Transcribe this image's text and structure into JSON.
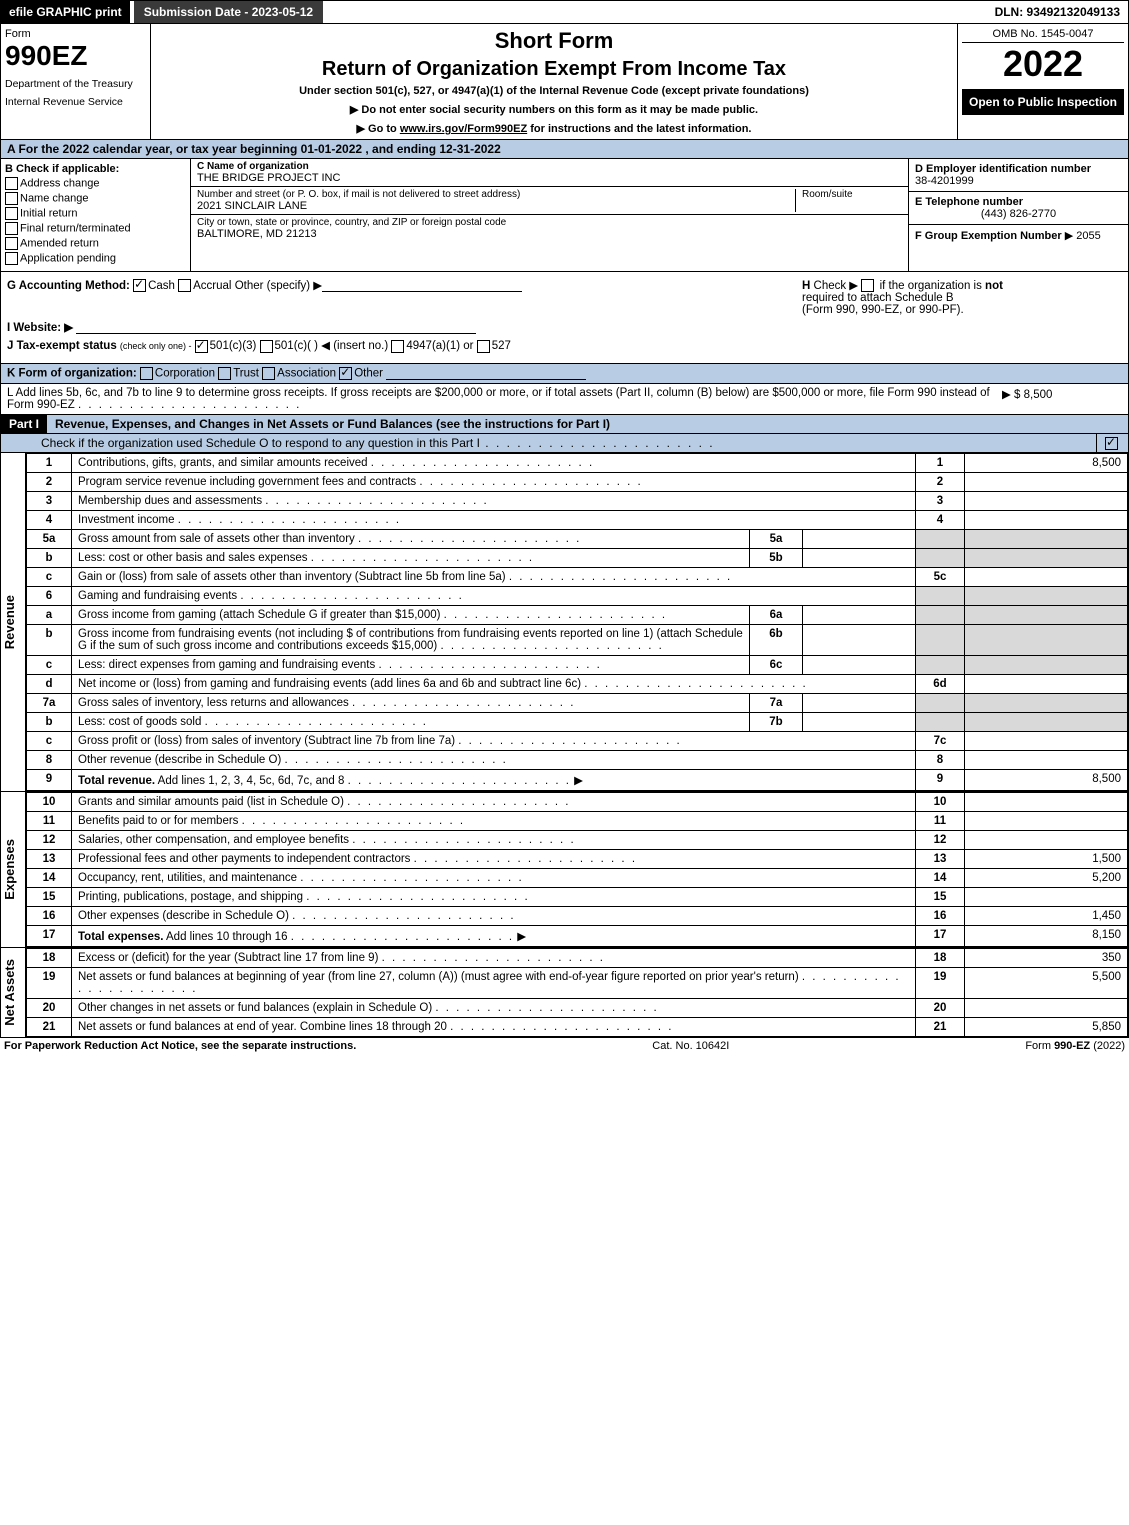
{
  "topbar": {
    "efile": "efile GRAPHIC print",
    "submission": "Submission Date - 2023-05-12",
    "dln": "DLN: 93492132049133"
  },
  "header": {
    "form_label": "Form",
    "form_number": "990EZ",
    "dept1": "Department of the Treasury",
    "dept2": "Internal Revenue Service",
    "short_form": "Short Form",
    "return_title": "Return of Organization Exempt From Income Tax",
    "under_section": "Under section 501(c), 527, or 4947(a)(1) of the Internal Revenue Code (except private foundations)",
    "notice1_prefix": "▶ Do not enter social security numbers on this form as it may be made public.",
    "notice2_prefix": "▶ Go to ",
    "notice2_link": "www.irs.gov/Form990EZ",
    "notice2_suffix": " for instructions and the latest information.",
    "omb": "OMB No. 1545-0047",
    "year": "2022",
    "open_to": "Open to Public Inspection"
  },
  "section_a": "A  For the 2022 calendar year, or tax year beginning 01-01-2022 , and ending 12-31-2022",
  "box_b": {
    "title": "B  Check if applicable:",
    "items": [
      "Address change",
      "Name change",
      "Initial return",
      "Final return/terminated",
      "Amended return",
      "Application pending"
    ]
  },
  "box_c": {
    "label": "C Name of organization",
    "name": "THE BRIDGE PROJECT INC",
    "street_label": "Number and street (or P. O. box, if mail is not delivered to street address)",
    "room_label": "Room/suite",
    "street": "2021 SINCLAIR LANE",
    "city_label": "City or town, state or province, country, and ZIP or foreign postal code",
    "city": "BALTIMORE, MD  21213"
  },
  "box_d": {
    "label": "D Employer identification number",
    "value": "38-4201999"
  },
  "box_e": {
    "label": "E Telephone number",
    "value": "(443) 826-2770"
  },
  "box_f": {
    "label": "F Group Exemption Number",
    "value": "▶ 2055"
  },
  "box_g": {
    "label": "G Accounting Method:",
    "cash": "Cash",
    "accrual": "Accrual",
    "other": "Other (specify) ▶"
  },
  "box_h": {
    "label": "H",
    "text1": "Check ▶",
    "text2": "if the organization is ",
    "not": "not",
    "text3": "required to attach Schedule B",
    "text4": "(Form 990, 990-EZ, or 990-PF)."
  },
  "box_i": {
    "label": "I Website: ▶"
  },
  "box_j": {
    "label": "J Tax-exempt status",
    "sub": "(check only one) -",
    "o1": "501(c)(3)",
    "o2": "501(c)(  ) ◀ (insert no.)",
    "o3": "4947(a)(1) or",
    "o4": "527"
  },
  "box_k": {
    "label": "K Form of organization:",
    "o1": "Corporation",
    "o2": "Trust",
    "o3": "Association",
    "o4": "Other"
  },
  "box_l": {
    "text": "L Add lines 5b, 6c, and 7b to line 9 to determine gross receipts. If gross receipts are $200,000 or more, or if total assets (Part II, column (B) below) are $500,000 or more, file Form 990 instead of Form 990-EZ",
    "amount": "▶ $ 8,500"
  },
  "part1": {
    "label": "Part I",
    "title": "Revenue, Expenses, and Changes in Net Assets or Fund Balances (see the instructions for Part I)",
    "check_line": "Check if the organization used Schedule O to respond to any question in this Part I"
  },
  "sections": {
    "revenue_label": "Revenue",
    "expenses_label": "Expenses",
    "netassets_label": "Net Assets"
  },
  "revenue_lines": [
    {
      "n": "1",
      "desc": "Contributions, gifts, grants, and similar amounts received",
      "rn": "1",
      "amt": "8,500"
    },
    {
      "n": "2",
      "desc": "Program service revenue including government fees and contracts",
      "rn": "2",
      "amt": ""
    },
    {
      "n": "3",
      "desc": "Membership dues and assessments",
      "rn": "3",
      "amt": ""
    },
    {
      "n": "4",
      "desc": "Investment income",
      "rn": "4",
      "amt": ""
    },
    {
      "n": "5a",
      "desc": "Gross amount from sale of assets other than inventory",
      "inner": "5a",
      "shade": true
    },
    {
      "n": "b",
      "desc": "Less: cost or other basis and sales expenses",
      "inner": "5b",
      "shade": true
    },
    {
      "n": "c",
      "desc": "Gain or (loss) from sale of assets other than inventory (Subtract line 5b from line 5a)",
      "rn": "5c",
      "amt": ""
    },
    {
      "n": "6",
      "desc": "Gaming and fundraising events",
      "shade_full": true
    },
    {
      "n": "a",
      "desc": "Gross income from gaming (attach Schedule G if greater than $15,000)",
      "inner": "6a",
      "shade": true
    },
    {
      "n": "b",
      "desc": "Gross income from fundraising events (not including $                         of contributions from fundraising events reported on line 1) (attach Schedule G if the sum of such gross income and contributions exceeds $15,000)",
      "inner": "6b",
      "shade": true
    },
    {
      "n": "c",
      "desc": "Less: direct expenses from gaming and fundraising events",
      "inner": "6c",
      "shade": true
    },
    {
      "n": "d",
      "desc": "Net income or (loss) from gaming and fundraising events (add lines 6a and 6b and subtract line 6c)",
      "rn": "6d",
      "amt": ""
    },
    {
      "n": "7a",
      "desc": "Gross sales of inventory, less returns and allowances",
      "inner": "7a",
      "shade": true
    },
    {
      "n": "b",
      "desc": "Less: cost of goods sold",
      "inner": "7b",
      "shade": true
    },
    {
      "n": "c",
      "desc": "Gross profit or (loss) from sales of inventory (Subtract line 7b from line 7a)",
      "rn": "7c",
      "amt": ""
    },
    {
      "n": "8",
      "desc": "Other revenue (describe in Schedule O)",
      "rn": "8",
      "amt": ""
    },
    {
      "n": "9",
      "desc": "Total revenue. Add lines 1, 2, 3, 4, 5c, 6d, 7c, and 8",
      "rn": "9",
      "amt": "8,500",
      "bold": true,
      "arrow": true
    }
  ],
  "expense_lines": [
    {
      "n": "10",
      "desc": "Grants and similar amounts paid (list in Schedule O)",
      "rn": "10",
      "amt": ""
    },
    {
      "n": "11",
      "desc": "Benefits paid to or for members",
      "rn": "11",
      "amt": ""
    },
    {
      "n": "12",
      "desc": "Salaries, other compensation, and employee benefits",
      "rn": "12",
      "amt": ""
    },
    {
      "n": "13",
      "desc": "Professional fees and other payments to independent contractors",
      "rn": "13",
      "amt": "1,500"
    },
    {
      "n": "14",
      "desc": "Occupancy, rent, utilities, and maintenance",
      "rn": "14",
      "amt": "5,200"
    },
    {
      "n": "15",
      "desc": "Printing, publications, postage, and shipping",
      "rn": "15",
      "amt": ""
    },
    {
      "n": "16",
      "desc": "Other expenses (describe in Schedule O)",
      "rn": "16",
      "amt": "1,450"
    },
    {
      "n": "17",
      "desc": "Total expenses. Add lines 10 through 16",
      "rn": "17",
      "amt": "8,150",
      "bold": true,
      "arrow": true
    }
  ],
  "netasset_lines": [
    {
      "n": "18",
      "desc": "Excess or (deficit) for the year (Subtract line 17 from line 9)",
      "rn": "18",
      "amt": "350"
    },
    {
      "n": "19",
      "desc": "Net assets or fund balances at beginning of year (from line 27, column (A)) (must agree with end-of-year figure reported on prior year's return)",
      "rn": "19",
      "amt": "5,500"
    },
    {
      "n": "20",
      "desc": "Other changes in net assets or fund balances (explain in Schedule O)",
      "rn": "20",
      "amt": ""
    },
    {
      "n": "21",
      "desc": "Net assets or fund balances at end of year. Combine lines 18 through 20",
      "rn": "21",
      "amt": "5,850"
    }
  ],
  "footer": {
    "left": "For Paperwork Reduction Act Notice, see the separate instructions.",
    "center": "Cat. No. 10642I",
    "right_prefix": "Form ",
    "right_form": "990-EZ",
    "right_suffix": " (2022)"
  },
  "colors": {
    "header_blue": "#b8cce4",
    "shade_gray": "#d9d9d9"
  }
}
